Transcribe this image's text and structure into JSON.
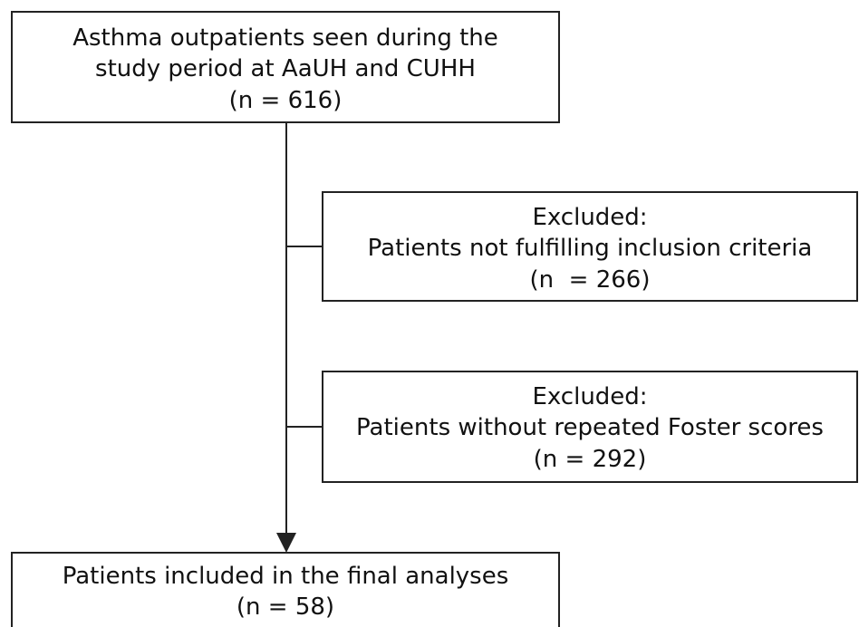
{
  "nodes": [
    {
      "lines": [
        "Asthma outpatients seen during the",
        "study period at AaUH and CUHH",
        "(n = 616)"
      ]
    },
    {
      "lines": [
        "Excluded:",
        "Patients not fulfilling inclusion criteria",
        "(n  = 266)"
      ]
    },
    {
      "lines": [
        "Excluded:",
        "Patients without repeated Foster scores",
        "(n = 292)"
      ]
    },
    {
      "lines": [
        "Patients included in the final analyses",
        "(n = 58)"
      ]
    }
  ]
}
